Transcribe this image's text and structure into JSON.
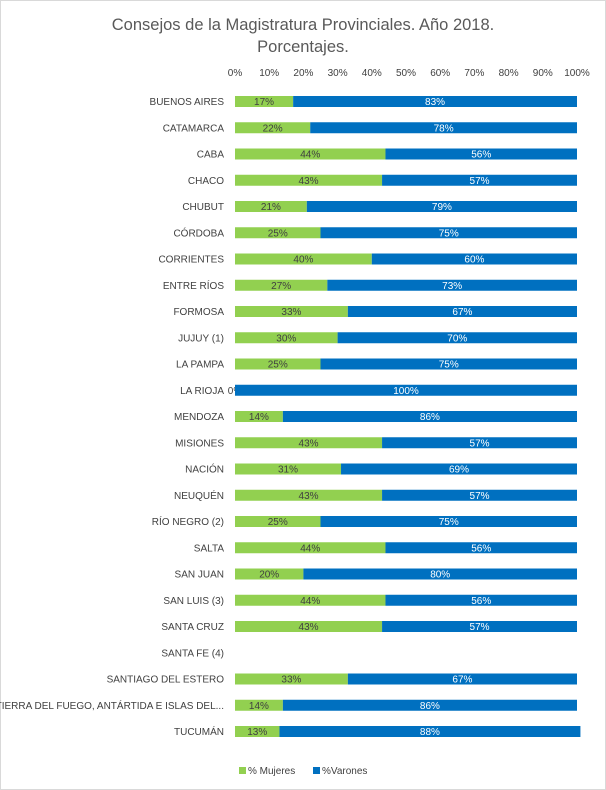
{
  "chart_data": {
    "type": "bar",
    "orientation": "horizontal",
    "stacked": "percent",
    "title_lines": [
      "Consejos de la Magistratura Provinciales. Año 2018.",
      "Porcentajes."
    ],
    "xlim": [
      0,
      100
    ],
    "x_ticks": [
      "0%",
      "10%",
      "20%",
      "30%",
      "40%",
      "50%",
      "60%",
      "70%",
      "80%",
      "90%",
      "100%"
    ],
    "x_axis_position": "top",
    "grid": false,
    "legend_position": "bottom",
    "categories": [
      "BUENOS AIRES",
      "CATAMARCA",
      "CABA",
      "CHACO",
      "CHUBUT",
      "CÓRDOBA",
      "CORRIENTES",
      "ENTRE RÍOS",
      "FORMOSA",
      "JUJUY (1)",
      "LA PAMPA",
      "LA RIOJA",
      "MENDOZA",
      "MISIONES",
      "NACIÓN",
      "NEUQUÉN",
      "RÍO NEGRO (2)",
      "SALTA",
      "SAN JUAN",
      "SAN LUIS (3)",
      "SANTA CRUZ",
      "SANTA FE (4)",
      "SANTIAGO DEL ESTERO",
      "TIERRA DEL FUEGO, ANTÁRTIDA E ISLAS DEL...",
      "TUCUMÁN"
    ],
    "series": [
      {
        "name": "% Mujeres",
        "color": "#92d050",
        "values": [
          17,
          22,
          44,
          43,
          21,
          25,
          40,
          27,
          33,
          30,
          25,
          0,
          14,
          43,
          31,
          43,
          25,
          44,
          20,
          44,
          43,
          null,
          33,
          14,
          13
        ],
        "labels": [
          "17%",
          "22%",
          "44%",
          "43%",
          "21%",
          "25%",
          "40%",
          "27%",
          "33%",
          "30%",
          "25%",
          "0%",
          "14%",
          "43%",
          "31%",
          "43%",
          "25%",
          "44%",
          "20%",
          "44%",
          "43%",
          "",
          "33%",
          "14%",
          "13%"
        ]
      },
      {
        "name": "%Varones",
        "color": "#0070c0",
        "values": [
          83,
          78,
          56,
          57,
          79,
          75,
          60,
          73,
          67,
          70,
          75,
          100,
          86,
          57,
          69,
          57,
          75,
          56,
          80,
          56,
          57,
          null,
          67,
          86,
          88
        ],
        "labels": [
          "83%",
          "78%",
          "56%",
          "57%",
          "79%",
          "75%",
          "60%",
          "73%",
          "67%",
          "70%",
          "75%",
          "100%",
          "86%",
          "57%",
          "69%",
          "57%",
          "75%",
          "56%",
          "80%",
          "56%",
          "57%",
          "",
          "67%",
          "86%",
          "88%"
        ]
      }
    ]
  }
}
